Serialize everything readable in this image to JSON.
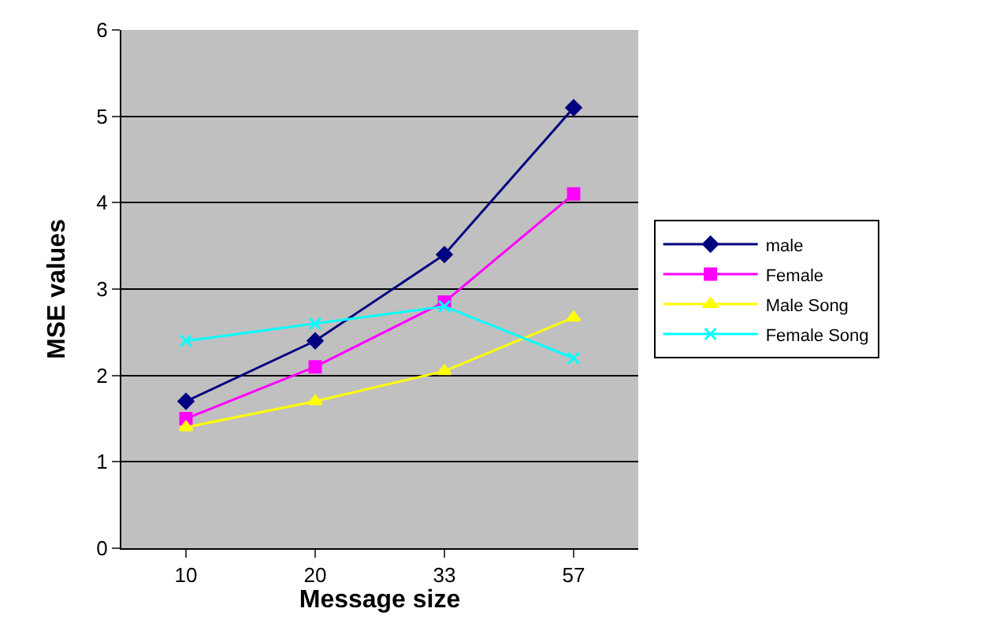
{
  "chart_data": {
    "type": "line",
    "xlabel": "Message size",
    "ylabel": "MSE values",
    "categories": [
      "10",
      "20",
      "33",
      "57"
    ],
    "series": [
      {
        "name": "male",
        "color": "#000080",
        "marker": "diamond",
        "values": [
          1.7,
          2.4,
          3.4,
          5.1
        ]
      },
      {
        "name": "Female",
        "color": "#ff00ff",
        "marker": "square",
        "values": [
          1.5,
          2.1,
          2.85,
          4.1
        ]
      },
      {
        "name": "Male Song",
        "color": "#ffff00",
        "marker": "triangle",
        "values": [
          1.4,
          1.7,
          2.05,
          2.67
        ]
      },
      {
        "name": "Female Song",
        "color": "#00ffff",
        "marker": "cross",
        "values": [
          2.4,
          2.6,
          2.8,
          2.2
        ]
      }
    ],
    "ylim": [
      0,
      6
    ],
    "yticks": [
      0,
      1,
      2,
      3,
      4,
      5,
      6
    ],
    "grid": "y",
    "legend": "right",
    "line_style": "solid"
  }
}
